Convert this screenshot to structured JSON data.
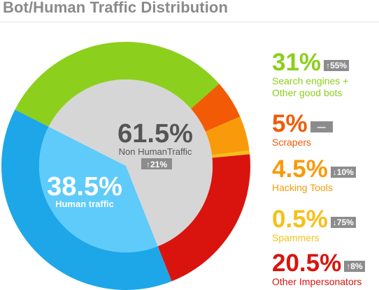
{
  "title": "Bot/Human Traffic Distribution",
  "chart_data": {
    "type": "pie",
    "title": "Bot/Human Traffic Distribution",
    "inner": [
      {
        "label": "Human traffic",
        "value": 38.5,
        "display": "38.5%",
        "color": "#5ecbfa"
      },
      {
        "label": "Non HumanTraffic",
        "value": 61.5,
        "display": "61.5%",
        "color": "#d6d6d6",
        "change": "↑21%"
      }
    ],
    "outer": [
      {
        "label": "Search engines + Other good bots",
        "value": 31,
        "display": "31%",
        "change": "↑55%",
        "color": "#8ccf1c"
      },
      {
        "label": "Scrapers",
        "value": 5,
        "display": "5%",
        "change": "—",
        "color": "#f25a06"
      },
      {
        "label": "Hacking Tools",
        "value": 4.5,
        "display": "4.5%",
        "change": "↓10%",
        "color": "#f99a0a"
      },
      {
        "label": "Spammers",
        "value": 0.5,
        "display": "0.5%",
        "change": "↓75%",
        "color": "#f5c018"
      },
      {
        "label": "Other Impersonators",
        "value": 20.5,
        "display": "20.5%",
        "change": "↑8%",
        "color": "#d9140e"
      },
      {
        "label": "Human traffic",
        "value": 38.5,
        "display": "38.5%",
        "color": "#1ea7e8"
      }
    ]
  },
  "legend": [
    {
      "pct": "31%",
      "badge": "↑55%",
      "label_lines": [
        "Search engines +",
        "Other good bots"
      ],
      "color": "#8ccf1c"
    },
    {
      "pct": "5%",
      "badge": "—",
      "label_lines": [
        "Scrapers"
      ],
      "color": "#f25a06"
    },
    {
      "pct": "4.5%",
      "badge": "↓10%",
      "label_lines": [
        "Hacking Tools"
      ],
      "color": "#f99a0a"
    },
    {
      "pct": "0.5%",
      "badge": "↓75%",
      "label_lines": [
        "Spammers"
      ],
      "color": "#f5c018"
    },
    {
      "pct": "20.5%",
      "badge": "↑8%",
      "label_lines": [
        "Other Impersonators"
      ],
      "color": "#d9140e"
    }
  ]
}
